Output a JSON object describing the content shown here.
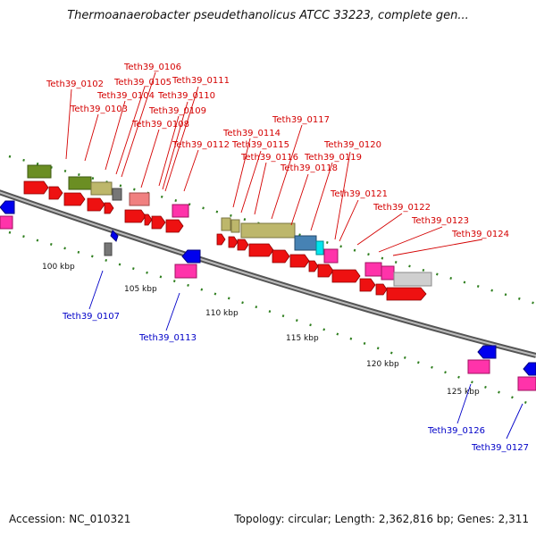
{
  "title": "Thermoanaerobacter pseudethanolicus ATCC 33223, complete gen...",
  "footer": {
    "accession": "Accession: NC_010321",
    "topology": "Topology: circular; Length: 2,362,816 bp; Genes: 2,311"
  },
  "colors": {
    "forward_label": "#d40000",
    "reverse_label": "#0000c8",
    "backbone": "#888888",
    "tick_marks": "#2f7f1f"
  },
  "scale_ticks": [
    {
      "text": "100 kbp"
    },
    {
      "text": "105 kbp"
    },
    {
      "text": "110 kbp"
    },
    {
      "text": "115 kbp"
    },
    {
      "text": "120 kbp"
    },
    {
      "text": "125 kbp"
    }
  ],
  "forward_labels": [
    "Teth39_0102",
    "Teth39_0103",
    "Teth39_0104",
    "Teth39_0105",
    "Teth39_0106",
    "Teth39_0108",
    "Teth39_0109",
    "Teth39_0110",
    "Teth39_0111",
    "Teth39_0112",
    "Teth39_0114",
    "Teth39_0115",
    "Teth39_0116",
    "Teth39_0117",
    "Teth39_0118",
    "Teth39_0119",
    "Teth39_0120",
    "Teth39_0121",
    "Teth39_0122",
    "Teth39_0123",
    "Teth39_0124"
  ],
  "reverse_labels": [
    "Teth39_0107",
    "Teth39_0113",
    "Teth39_0126",
    "Teth39_0127"
  ]
}
